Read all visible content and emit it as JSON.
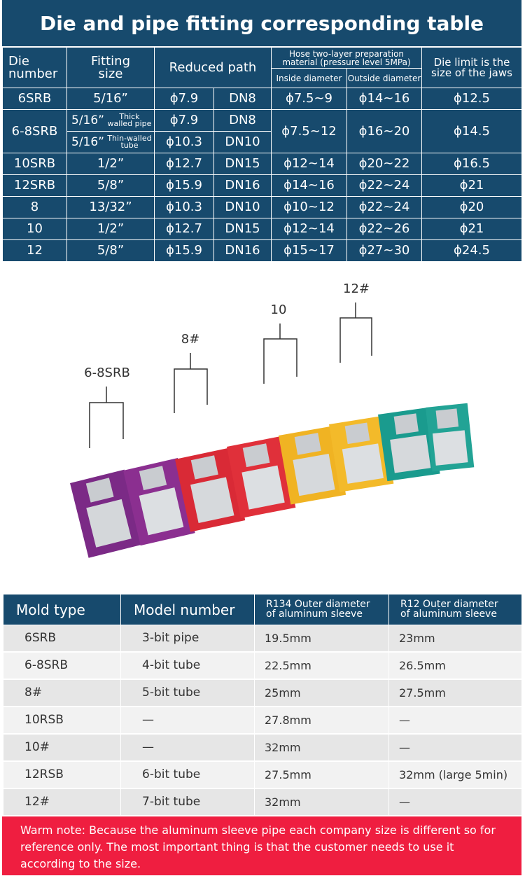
{
  "title": "Die and pipe fitting corresponding table",
  "table1": {
    "headers": {
      "die": "Die number",
      "fitting": "Fitting size",
      "reduced": "Reduced path",
      "hose": "Hose two-layer preparation material (pressure level 5MPa)",
      "inside": "Inside diameter",
      "outside": "Outside diameter",
      "limit": "Die limit is the size of the jaws"
    },
    "first_row": [
      "6SRB",
      "5/16”",
      "ϕ7.9",
      "DN8",
      "ϕ7.5~9",
      "ϕ14~16",
      "ϕ12.5"
    ],
    "split_row": {
      "die": "6-8SRB",
      "sub": [
        {
          "fitting": "5/16”",
          "note": "Thick walled pipe",
          "path": "ϕ7.9",
          "dn": "DN8"
        },
        {
          "fitting": "5/16”",
          "note": "Thin-walled tube",
          "path": "ϕ10.3",
          "dn": "DN10"
        }
      ],
      "inside": "ϕ7.5~12",
      "outside": "ϕ16~20",
      "limit": "ϕ14.5"
    },
    "rows": [
      [
        "10SRB",
        "1/2”",
        "ϕ12.7",
        "DN15",
        "ϕ12~14",
        "ϕ20~22",
        "ϕ16.5"
      ],
      [
        "12SRB",
        "5/8”",
        "ϕ15.9",
        "DN16",
        "ϕ14~16",
        "ϕ22~24",
        "ϕ21"
      ],
      [
        "8",
        "13/32”",
        "ϕ10.3",
        "DN10",
        "ϕ10~12",
        "ϕ22~24",
        "ϕ20"
      ],
      [
        "10",
        "1/2”",
        "ϕ12.7",
        "DN15",
        "ϕ12~14",
        "ϕ22~26",
        "ϕ21"
      ],
      [
        "12",
        "5/8”",
        "ϕ15.9",
        "DN16",
        "ϕ15~17",
        "ϕ27~30",
        "ϕ24.5"
      ]
    ]
  },
  "image_labels": [
    "6-8SRB",
    "8#",
    "10",
    "12#"
  ],
  "table2": {
    "headers": [
      "Mold type",
      "Model number",
      "R134 Outer diameter of aluminum sleeve",
      "R12 Outer diameter of aluminum sleeve"
    ],
    "rows": [
      [
        "6SRB",
        "3-bit pipe",
        "19.5mm",
        "23mm"
      ],
      [
        "6-8SRB",
        "4-bit tube",
        "22.5mm",
        "26.5mm"
      ],
      [
        "8#",
        "5-bit tube",
        "25mm",
        "27.5mm"
      ],
      [
        "10RSB",
        "—",
        "27.8mm",
        "—"
      ],
      [
        "10#",
        "—",
        "32mm",
        "—"
      ],
      [
        "12RSB",
        "6-bit tube",
        "27.5mm",
        "32mm (large 5min)"
      ],
      [
        "12#",
        "7-bit tube",
        "32mm",
        "—"
      ]
    ]
  },
  "note": "Warm note: Because the aluminum sleeve pipe each company size is different so for reference only. The most important thing is that the customer needs to use it according to the size."
}
